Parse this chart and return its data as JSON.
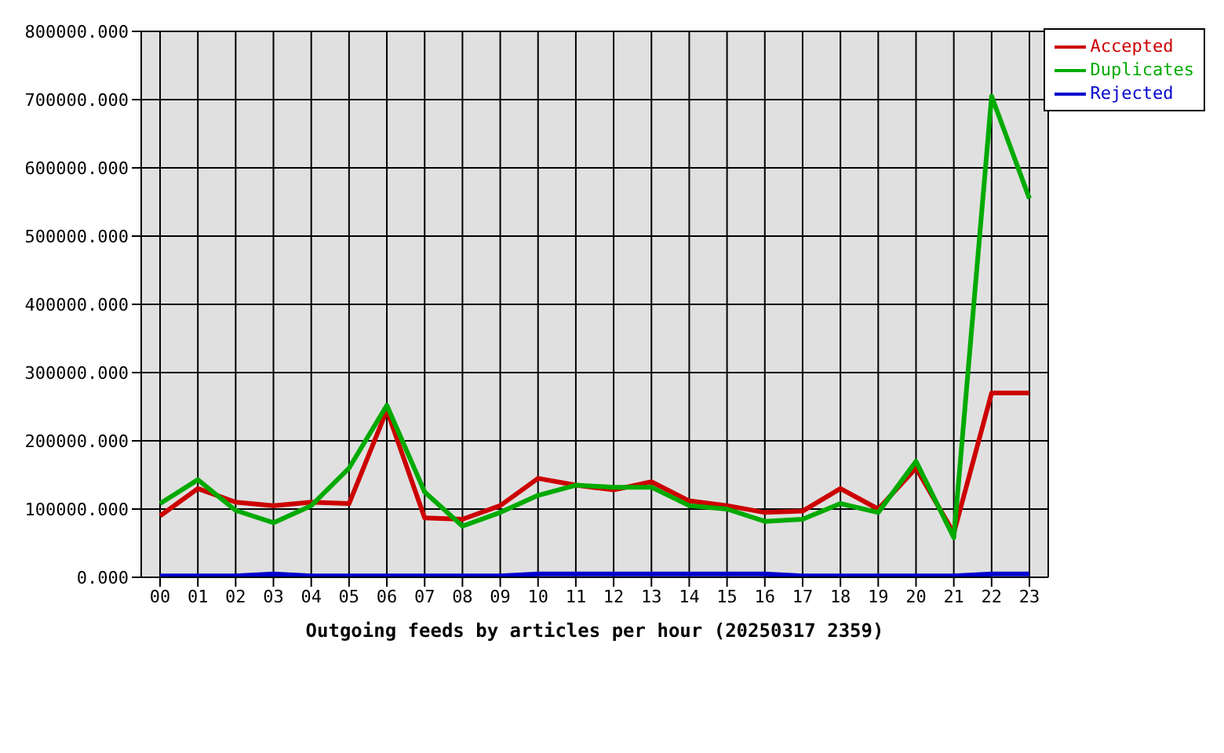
{
  "chart_data": {
    "type": "line",
    "xlabel": "Outgoing feeds by articles per hour (20250317 2359)",
    "categories": [
      "00",
      "01",
      "02",
      "03",
      "04",
      "05",
      "06",
      "07",
      "08",
      "09",
      "10",
      "11",
      "12",
      "13",
      "14",
      "15",
      "16",
      "17",
      "18",
      "19",
      "20",
      "21",
      "22",
      "23"
    ],
    "series": [
      {
        "name": "Accepted",
        "color": "#cc0000",
        "values": [
          90000,
          130000,
          110000,
          105000,
          110000,
          108000,
          245000,
          87000,
          85000,
          105000,
          145000,
          135000,
          128000,
          140000,
          112000,
          105000,
          95000,
          97000,
          130000,
          100000,
          160000,
          65000,
          270000,
          270000
        ]
      },
      {
        "name": "Duplicates",
        "color": "#00aa00",
        "values": [
          108000,
          143000,
          98000,
          80000,
          105000,
          160000,
          252000,
          125000,
          75000,
          95000,
          120000,
          135000,
          132000,
          132000,
          105000,
          100000,
          82000,
          85000,
          108000,
          95000,
          170000,
          58000,
          705000,
          555000
        ]
      },
      {
        "name": "Rejected",
        "color": "#0000cc",
        "values": [
          2000,
          2000,
          2000,
          5000,
          2000,
          2000,
          2000,
          2000,
          2000,
          2000,
          5000,
          5000,
          5000,
          5000,
          5000,
          5000,
          5000,
          2000,
          2000,
          2000,
          2000,
          2000,
          5000,
          5000
        ]
      }
    ],
    "ylim": [
      0,
      800000
    ],
    "yticks": [
      {
        "value": 0,
        "label": "0.000"
      },
      {
        "value": 100000,
        "label": "100000.000"
      },
      {
        "value": 200000,
        "label": "200000.000"
      },
      {
        "value": 300000,
        "label": "300000.000"
      },
      {
        "value": 400000,
        "label": "400000.000"
      },
      {
        "value": 500000,
        "label": "500000.000"
      },
      {
        "value": 600000,
        "label": "600000.000"
      },
      {
        "value": 700000,
        "label": "700000.000"
      },
      {
        "value": 800000,
        "label": "800000.000"
      }
    ],
    "grid": true,
    "legend": "top right",
    "marker": "none",
    "line_style": "solid"
  }
}
